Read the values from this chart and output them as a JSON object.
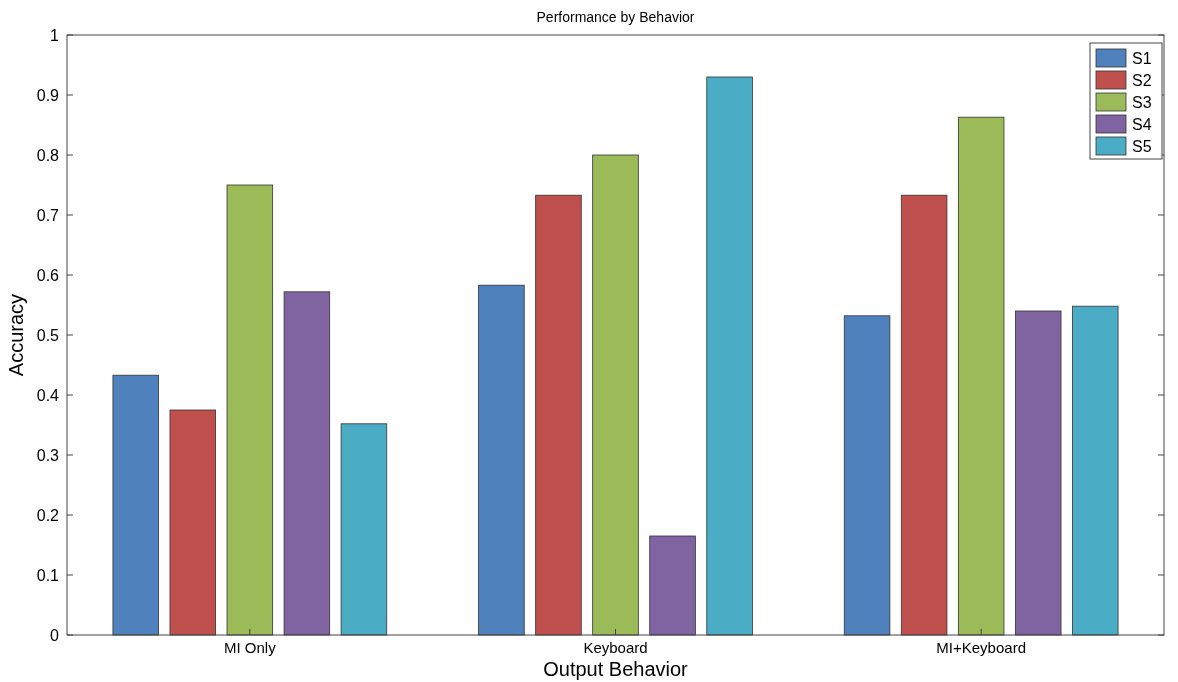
{
  "chart_data": {
    "type": "bar",
    "title": "Performance by Behavior",
    "xlabel": "Output Behavior",
    "ylabel": "Accuracy",
    "categories": [
      "MI Only",
      "Keyboard",
      "MI+Keyboard"
    ],
    "series": [
      {
        "name": "S1",
        "color": "#4f81bd",
        "values": [
          0.433,
          0.583,
          0.532
        ]
      },
      {
        "name": "S2",
        "color": "#c0504d",
        "values": [
          0.375,
          0.733,
          0.733
        ]
      },
      {
        "name": "S3",
        "color": "#9bbb59",
        "values": [
          0.75,
          0.8,
          0.863
        ]
      },
      {
        "name": "S4",
        "color": "#8064a2",
        "values": [
          0.572,
          0.165,
          0.54
        ]
      },
      {
        "name": "S5",
        "color": "#4bacc6",
        "values": [
          0.352,
          0.93,
          0.548
        ]
      }
    ],
    "ylim": [
      0,
      1
    ],
    "yticks": [
      0,
      0.1,
      0.2,
      0.3,
      0.4,
      0.5,
      0.6,
      0.7,
      0.8,
      0.9,
      1
    ],
    "grid": false,
    "legend": "top right"
  }
}
